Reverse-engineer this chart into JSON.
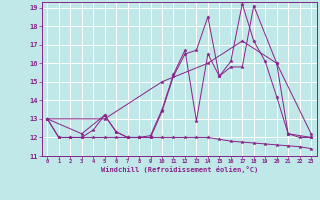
{
  "xlabel": "Windchill (Refroidissement éolien,°C)",
  "xlim": [
    -0.5,
    23.5
  ],
  "ylim": [
    11,
    19.3
  ],
  "xticks": [
    0,
    1,
    2,
    3,
    4,
    5,
    6,
    7,
    8,
    9,
    10,
    11,
    12,
    13,
    14,
    15,
    16,
    17,
    18,
    19,
    20,
    21,
    22,
    23
  ],
  "yticks": [
    11,
    12,
    13,
    14,
    15,
    16,
    17,
    18,
    19
  ],
  "background_color": "#c0e8e8",
  "grid_color": "#ffffff",
  "line_color": "#882288",
  "lines": [
    {
      "x": [
        0,
        1,
        2,
        3,
        4,
        5,
        6,
        7,
        8,
        9,
        10,
        11,
        12,
        13,
        14,
        15,
        16,
        17,
        18,
        19,
        20,
        21,
        22,
        23
      ],
      "y": [
        13,
        12,
        12,
        12,
        12,
        12,
        12,
        12,
        12,
        12,
        12,
        12,
        12,
        12,
        12,
        11.9,
        11.8,
        11.75,
        11.7,
        11.65,
        11.6,
        11.55,
        11.5,
        11.4
      ]
    },
    {
      "x": [
        0,
        5,
        10,
        14,
        17,
        20,
        23
      ],
      "y": [
        13,
        13,
        15,
        16.0,
        17.2,
        16.0,
        12.2
      ]
    },
    {
      "x": [
        0,
        1,
        2,
        3,
        4,
        5,
        6,
        7,
        8,
        9,
        10,
        11,
        12,
        13,
        14,
        15,
        16,
        17,
        18,
        19,
        20,
        21,
        22,
        23
      ],
      "y": [
        13,
        12,
        12,
        12,
        12.4,
        13.2,
        12.3,
        12,
        12,
        12,
        13.4,
        15.3,
        16.5,
        16.7,
        18.5,
        15.3,
        16.1,
        19.2,
        17.2,
        16.1,
        14.2,
        12.2,
        12,
        12
      ]
    },
    {
      "x": [
        0,
        3,
        5,
        6,
        7,
        8,
        9,
        10,
        11,
        12,
        13,
        14,
        15,
        16,
        17,
        18,
        20,
        21,
        23
      ],
      "y": [
        13,
        12.2,
        13.2,
        12.3,
        12,
        12,
        12.1,
        13.5,
        15.4,
        16.7,
        12.9,
        16.5,
        15.3,
        15.8,
        15.8,
        19.1,
        16.0,
        12.2,
        12
      ]
    }
  ]
}
